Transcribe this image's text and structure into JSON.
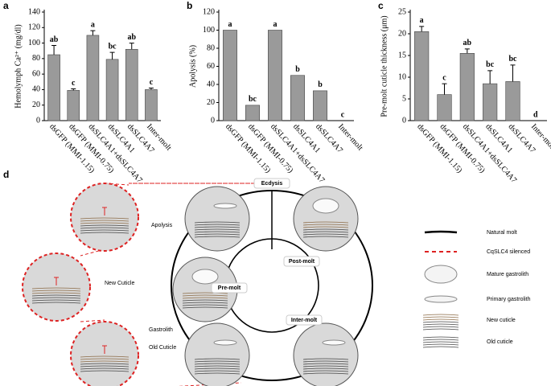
{
  "chart_data": [
    {
      "type": "bar",
      "panel": "a",
      "ylabel": "Hemolymph Ca²⁺ (mg/dl)",
      "categories": [
        "dsGFP (MMI-1.15)",
        "dsGFP (MMI-0.75)",
        "dsSLC4A1+dsSLC4A7",
        "dsSLC4A1",
        "dsSLC4A7",
        "Inter-molt"
      ],
      "values": [
        85,
        39,
        110,
        79,
        92,
        40
      ],
      "errors": [
        12,
        2,
        6,
        9,
        8,
        2
      ],
      "annotations": [
        "ab",
        "c",
        "a",
        "bc",
        "ab",
        "c"
      ],
      "color": "#9a9a9a",
      "ylim": [
        0,
        140
      ],
      "yticks": [
        0,
        20,
        40,
        60,
        80,
        100,
        120,
        140
      ]
    },
    {
      "type": "bar",
      "panel": "b",
      "ylabel": "Apolysis (%)",
      "categories": [
        "dsGFP (MMI-1.15)",
        "dsGFP (MMI-0.75)",
        "dsSLC4A1+dsSLC4A7",
        "dsSLC4A1",
        "dsSLC4A7",
        "Inter-molt"
      ],
      "values": [
        100,
        17,
        100,
        50,
        33,
        0
      ],
      "annotations": [
        "a",
        "bc",
        "a",
        "b",
        "b",
        "c"
      ],
      "color": "#9a9a9a",
      "ylim": [
        0,
        120
      ],
      "yticks": [
        0,
        20,
        40,
        60,
        80,
        100,
        120
      ]
    },
    {
      "type": "bar",
      "panel": "c",
      "ylabel": "Pre-molt cuticle thickness (μm)",
      "categories": [
        "dsGFP (MMI-1.15)",
        "dsGFP (MMI-0.75)",
        "dsSLC4A1+dsSLC4A7",
        "dsSLC4A1",
        "dsSLC4A7",
        "Inter-molt"
      ],
      "values": [
        20.5,
        6,
        15.5,
        8.5,
        9,
        0
      ],
      "errors": [
        1.2,
        2.5,
        1,
        3,
        3.8,
        0
      ],
      "annotations": [
        "a",
        "c",
        "ab",
        "bc",
        "bc",
        "d"
      ],
      "color": "#9a9a9a",
      "ylim": [
        0,
        25
      ],
      "yticks": [
        0,
        5,
        10,
        15,
        20,
        25
      ]
    }
  ],
  "diagram": {
    "panel": "d",
    "stages": [
      "Ecdysis",
      "Post-molt",
      "Pre-molt",
      "Inter-molt"
    ],
    "callouts": [
      "Apolysis",
      "New Cuticle",
      "Gastrolith",
      "Old Cuticle"
    ],
    "legend": [
      "Natural molt",
      "CqSLC4 silenced",
      "Mature gastrolith",
      "Primary gastrolith",
      "New cuticle",
      "Old cuticle"
    ]
  }
}
